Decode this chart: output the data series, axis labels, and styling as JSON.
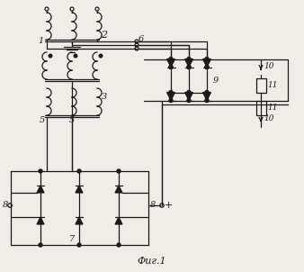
{
  "bg_color": "#f0ede8",
  "lc": "#1a1a1a",
  "figsize": [
    3.38,
    3.02
  ],
  "dpi": 100,
  "title": "Фиг.1"
}
